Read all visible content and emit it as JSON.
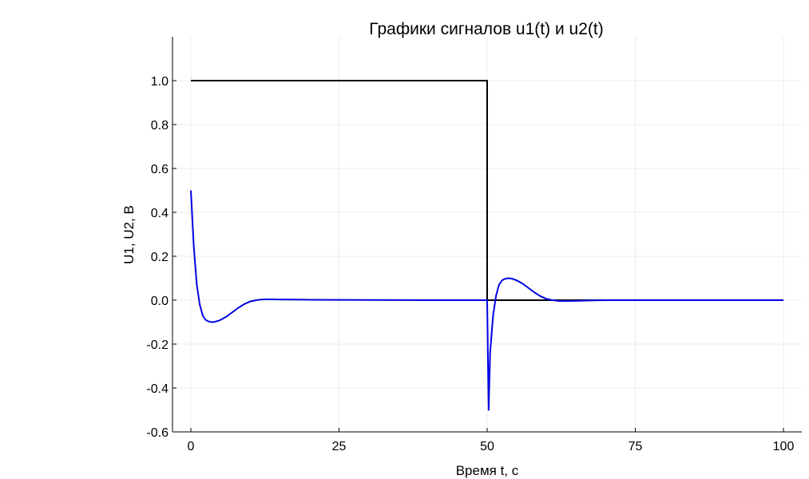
{
  "chart_data": {
    "type": "line",
    "title": "Графики сигналов u1(t) и u2(t)",
    "xlabel": "Время t, с",
    "ylabel": "U1, U2, В",
    "xlim": [
      0,
      100
    ],
    "ylim": [
      -0.6,
      1.2
    ],
    "xticks": [
      0,
      25,
      50,
      75,
      100
    ],
    "xtick_labels": [
      "0",
      "25",
      "50",
      "75",
      "100"
    ],
    "yticks": [
      -0.6,
      -0.4,
      -0.2,
      0.0,
      0.2,
      0.4,
      0.6,
      0.8,
      1.0
    ],
    "ytick_labels": [
      "-0.6",
      "-0.4",
      "-0.2",
      "0.0",
      "0.2",
      "0.4",
      "0.6",
      "0.8",
      "1.0"
    ],
    "grid": true,
    "legend": "none",
    "series": [
      {
        "color": "#000000",
        "x": [
          0,
          50,
          50,
          100
        ],
        "y": [
          1.0,
          1.0,
          0.0,
          0.0
        ]
      },
      {
        "color": "#0000e6",
        "x": [
          0,
          0.5,
          1,
          1.5,
          2,
          2.5,
          3,
          3.5,
          4,
          4.5,
          5,
          6,
          7,
          8,
          9,
          10,
          11,
          12,
          13,
          15,
          20,
          30,
          40,
          49.9,
          50,
          50.25,
          50.5,
          51,
          51.5,
          52,
          52.5,
          53,
          53.5,
          54,
          54.5,
          55,
          56,
          57,
          58,
          59,
          60,
          61,
          62,
          63,
          65,
          68,
          70,
          80,
          90,
          100
        ],
        "y": [
          0.5,
          0.24,
          0.07,
          -0.02,
          -0.07,
          -0.09,
          -0.097,
          -0.1,
          -0.099,
          -0.095,
          -0.09,
          -0.075,
          -0.055,
          -0.035,
          -0.018,
          -0.006,
          0.0,
          0.003,
          0.004,
          0.003,
          0.002,
          0.001,
          0.0,
          0.0,
          0.0,
          -0.5,
          -0.24,
          -0.07,
          0.02,
          0.07,
          0.09,
          0.097,
          0.1,
          0.099,
          0.095,
          0.09,
          0.075,
          0.055,
          0.035,
          0.018,
          0.006,
          0.0,
          -0.003,
          -0.004,
          -0.003,
          -0.001,
          0.0,
          0.0,
          0.0,
          0.0
        ]
      }
    ]
  }
}
